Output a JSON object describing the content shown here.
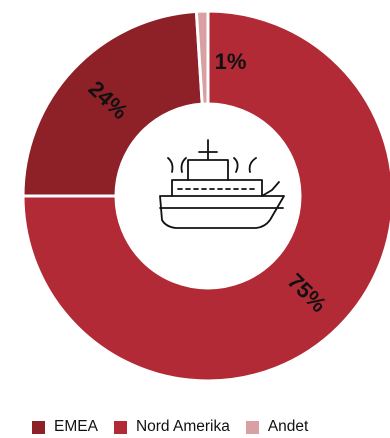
{
  "chart_data": {
    "type": "pie",
    "donut": true,
    "categories": [
      "EMEA",
      "Nord Amerika",
      "Andet"
    ],
    "values": [
      24,
      75,
      1
    ],
    "labels": [
      "24%",
      "75%",
      "1%"
    ],
    "colors": [
      "#8e2028",
      "#b12a36",
      "#d9a0a4"
    ],
    "center_icon": "ship-icon",
    "legend_position": "bottom"
  }
}
